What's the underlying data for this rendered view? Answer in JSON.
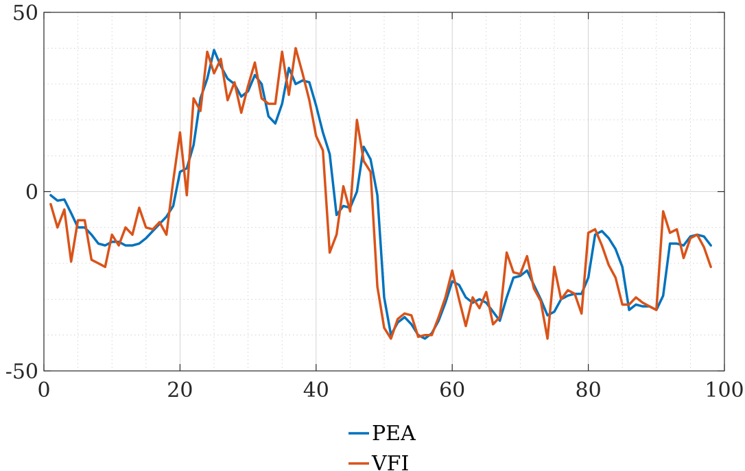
{
  "chart_data": {
    "type": "line",
    "xlim": [
      0,
      100
    ],
    "ylim": [
      -50,
      50
    ],
    "x_ticks": [
      0,
      20,
      40,
      60,
      80,
      100
    ],
    "y_ticks": [
      50,
      0,
      -50
    ],
    "x_tick_labels": [
      "0",
      "20",
      "40",
      "60",
      "80",
      "100"
    ],
    "y_tick_labels": [
      "50",
      "0",
      "-50"
    ],
    "x_minor_step": 5,
    "y_minor_step": 10,
    "grid": true,
    "legend_position": "bottom-center",
    "series": [
      {
        "name": "PEA",
        "color": "#0072BD",
        "x": [
          1,
          2,
          3,
          4,
          5,
          6,
          7,
          8,
          9,
          10,
          11,
          12,
          13,
          14,
          15,
          16,
          17,
          18,
          19,
          20,
          21,
          22,
          23,
          24,
          25,
          26,
          27,
          28,
          29,
          30,
          31,
          32,
          33,
          34,
          35,
          36,
          37,
          38,
          39,
          40,
          41,
          42,
          43,
          44,
          45,
          46,
          47,
          48,
          49,
          50,
          51,
          52,
          53,
          54,
          55,
          56,
          57,
          58,
          59,
          60,
          61,
          62,
          63,
          64,
          65,
          66,
          67,
          68,
          69,
          70,
          71,
          72,
          73,
          74,
          75,
          76,
          77,
          78,
          79,
          80,
          81,
          82,
          83,
          84,
          85,
          86,
          87,
          88,
          89,
          90,
          91,
          92,
          93,
          94,
          95,
          96,
          97,
          98
        ],
        "y": [
          -1,
          -2.5,
          -2.2,
          -6,
          -10,
          -10,
          -12,
          -14.5,
          -15,
          -14,
          -14,
          -15,
          -15,
          -14.5,
          -13,
          -11,
          -9,
          -7,
          -4,
          5.5,
          6.5,
          13,
          26,
          31.5,
          39.5,
          35,
          31.5,
          30,
          26.5,
          28,
          32.5,
          30,
          21,
          19,
          24.5,
          34.5,
          30,
          31,
          30.5,
          24,
          16.5,
          10.5,
          -6.5,
          -4,
          -4.5,
          0,
          12.5,
          9,
          -1,
          -29.5,
          -40,
          -36.5,
          -35,
          -37,
          -40,
          -41,
          -39.5,
          -36,
          -31,
          -25,
          -26,
          -29.5,
          -31,
          -30,
          -31,
          -33.5,
          -36,
          -29.5,
          -24,
          -23.5,
          -22,
          -26,
          -30,
          -34.5,
          -33.5,
          -30,
          -29,
          -28.5,
          -28.5,
          -24,
          -12,
          -11,
          -13,
          -16,
          -21,
          -33,
          -31.5,
          -32,
          -32,
          -33,
          -29,
          -14.5,
          -14.5,
          -15,
          -12.5,
          -12,
          -12.5,
          -15
        ]
      },
      {
        "name": "VFI",
        "color": "#D95319",
        "x": [
          1,
          2,
          3,
          4,
          5,
          6,
          7,
          8,
          9,
          10,
          11,
          12,
          13,
          14,
          15,
          16,
          17,
          18,
          19,
          20,
          21,
          22,
          23,
          24,
          25,
          26,
          27,
          28,
          29,
          30,
          31,
          32,
          33,
          34,
          35,
          36,
          37,
          38,
          39,
          40,
          41,
          42,
          43,
          44,
          45,
          46,
          47,
          48,
          49,
          50,
          51,
          52,
          53,
          54,
          55,
          56,
          57,
          58,
          59,
          60,
          61,
          62,
          63,
          64,
          65,
          66,
          67,
          68,
          69,
          70,
          71,
          72,
          73,
          74,
          75,
          76,
          77,
          78,
          79,
          80,
          81,
          82,
          83,
          84,
          85,
          86,
          87,
          88,
          89,
          90,
          91,
          92,
          93,
          94,
          95,
          96,
          97,
          98
        ],
        "y": [
          -3.5,
          -10,
          -5,
          -19.5,
          -8,
          -8,
          -19,
          -20,
          -21,
          -12,
          -15,
          -10,
          -12,
          -4.5,
          -10,
          -10.5,
          -8.5,
          -12,
          3,
          16.5,
          -1,
          26,
          22.5,
          39,
          33,
          37,
          25.5,
          30.5,
          22,
          29.5,
          36,
          26,
          24.5,
          24.5,
          39,
          27,
          40,
          33,
          25.5,
          15.5,
          11.5,
          -17,
          -12,
          1.5,
          -5.5,
          20,
          8.5,
          5.5,
          -26.5,
          -38,
          -41,
          -35.5,
          -34,
          -34.5,
          -40.5,
          -40,
          -40,
          -35,
          -29.5,
          -22,
          -30,
          -37.5,
          -29.5,
          -32.5,
          -28,
          -37,
          -35,
          -17,
          -22.5,
          -23,
          -18,
          -27,
          -30.5,
          -41,
          -21,
          -30,
          -27.5,
          -28.5,
          -34,
          -11.5,
          -10.5,
          -15,
          -20.5,
          -24,
          -31.5,
          -31.5,
          -29.5,
          -31,
          -32,
          -33,
          -5.5,
          -11.5,
          -10.5,
          -18.5,
          -13,
          -12,
          -15.5,
          -21
        ]
      }
    ]
  }
}
